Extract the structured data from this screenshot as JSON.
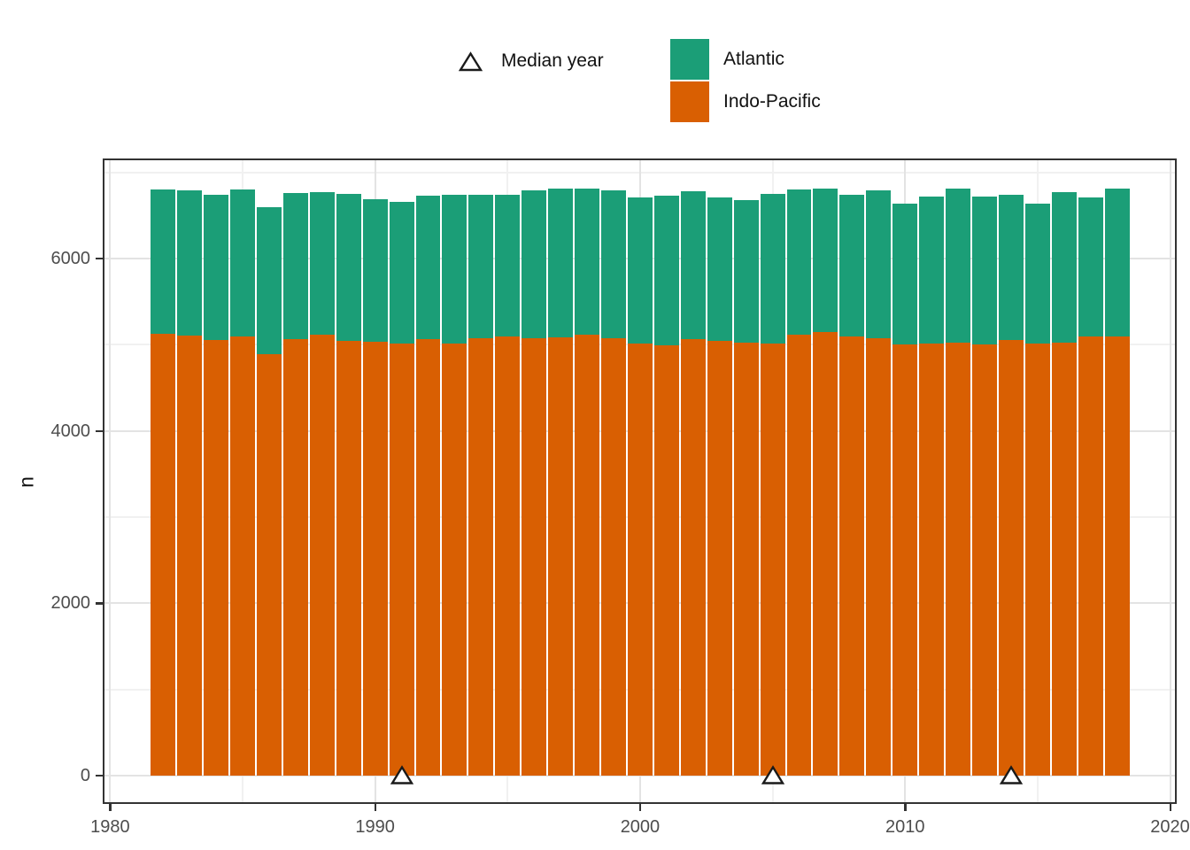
{
  "figure": {
    "background": "#ffffff"
  },
  "legend": {
    "median": {
      "symbol": "open-triangle",
      "label": "Median year"
    },
    "entries": [
      {
        "label": "Atlantic",
        "color": "#1B9E77"
      },
      {
        "label": "Indo-Pacific",
        "color": "#D95F02"
      }
    ]
  },
  "chart_data": {
    "type": "bar",
    "stacked": true,
    "title": "",
    "xlabel": "",
    "ylabel": "n",
    "x": [
      1982,
      1983,
      1984,
      1985,
      1986,
      1987,
      1988,
      1989,
      1990,
      1991,
      1992,
      1993,
      1994,
      1995,
      1996,
      1997,
      1998,
      1999,
      2000,
      2001,
      2002,
      2003,
      2004,
      2005,
      2006,
      2007,
      2008,
      2009,
      2010,
      2011,
      2012,
      2013,
      2014,
      2015,
      2016,
      2017,
      2018
    ],
    "series": [
      {
        "name": "Indo-Pacific",
        "color": "#D95F02",
        "values": [
          5130,
          5100,
          5050,
          5090,
          4890,
          5060,
          5120,
          5040,
          5030,
          5010,
          5060,
          5010,
          5070,
          5090,
          5070,
          5080,
          5120,
          5070,
          5010,
          4990,
          5060,
          5040,
          5020,
          5010,
          5120,
          5150,
          5090,
          5070,
          5000,
          5010,
          5020,
          5000,
          5050,
          5010,
          5020,
          5090,
          5090
        ]
      },
      {
        "name": "Atlantic",
        "color": "#1B9E77",
        "values": [
          1670,
          1690,
          1690,
          1710,
          1710,
          1700,
          1650,
          1710,
          1660,
          1650,
          1670,
          1730,
          1670,
          1650,
          1720,
          1730,
          1690,
          1720,
          1700,
          1740,
          1720,
          1670,
          1660,
          1740,
          1680,
          1660,
          1650,
          1720,
          1640,
          1710,
          1790,
          1720,
          1690,
          1630,
          1750,
          1620,
          1720
        ]
      }
    ],
    "markers": {
      "name": "Median year",
      "shape": "open-triangle",
      "x": [
        1991,
        2005,
        2014
      ],
      "y": [
        0,
        0,
        0
      ]
    },
    "bar_width_years": 0.9333,
    "x_ticks": [
      1980,
      1990,
      2000,
      2010,
      2020
    ],
    "x_minor": [
      1985,
      1995,
      2005,
      2015
    ],
    "y_ticks": [
      0,
      2000,
      4000,
      6000
    ],
    "y_minor": [
      1000,
      3000,
      5000,
      7000
    ],
    "xlim": [
      1979.72,
      2020.25
    ],
    "ylim": [
      -330,
      7160
    ],
    "grid": true,
    "legend_position": "top-center"
  }
}
